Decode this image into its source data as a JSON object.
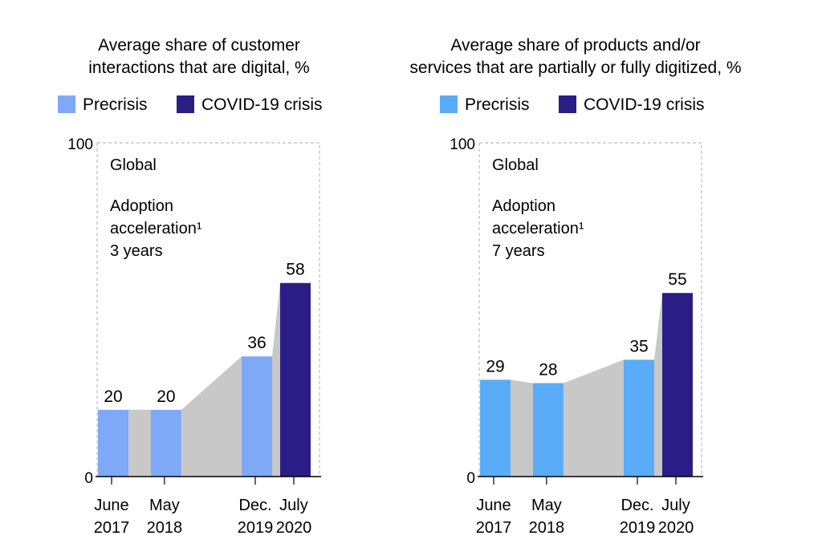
{
  "chart_data": [
    {
      "type": "bar",
      "title_lines": [
        "Average share of customer",
        "interactions that are digital, %"
      ],
      "legend": [
        {
          "label": "Precrisis",
          "color": "#7fa8f7"
        },
        {
          "label": "COVID-19 crisis",
          "color": "#2a1d86"
        }
      ],
      "ylim": [
        0,
        100
      ],
      "y_ticks": [
        "0",
        "100"
      ],
      "panel_label": "Global",
      "annotation_lines": [
        "Adoption",
        "acceleration¹"
      ],
      "annotation_value": "3 years",
      "categories": [
        {
          "month": "June",
          "year": "2017",
          "t": 0
        },
        {
          "month": "May",
          "year": "2018",
          "t": 0.92
        },
        {
          "month": "Dec.",
          "year": "2019",
          "t": 2.5
        },
        {
          "month": "July",
          "year": "2020",
          "t": 3.17
        }
      ],
      "values": [
        20,
        20,
        36,
        58
      ],
      "value_labels": [
        "20",
        "20",
        "36",
        "58"
      ],
      "phases": [
        "precrisis",
        "precrisis",
        "precrisis",
        "crisis"
      ],
      "connector_color": "#c8c8c8"
    },
    {
      "type": "bar",
      "title_lines": [
        "Average share of products and/or",
        "services that are partially or fully digitized, %"
      ],
      "legend": [
        {
          "label": "Precrisis",
          "color": "#5aacf9"
        },
        {
          "label": "COVID-19 crisis",
          "color": "#2a1d86"
        }
      ],
      "ylim": [
        0,
        100
      ],
      "y_ticks": [
        "0",
        "100"
      ],
      "panel_label": "Global",
      "annotation_lines": [
        "Adoption",
        "acceleration¹"
      ],
      "annotation_value": "7 years",
      "categories": [
        {
          "month": "June",
          "year": "2017",
          "t": 0
        },
        {
          "month": "May",
          "year": "2018",
          "t": 0.92
        },
        {
          "month": "Dec.",
          "year": "2019",
          "t": 2.5
        },
        {
          "month": "July",
          "year": "2020",
          "t": 3.17
        }
      ],
      "values": [
        29,
        28,
        35,
        55
      ],
      "value_labels": [
        "29",
        "28",
        "35",
        "55"
      ],
      "phases": [
        "precrisis",
        "precrisis",
        "precrisis",
        "crisis"
      ],
      "connector_color": "#c8c8c8"
    }
  ]
}
